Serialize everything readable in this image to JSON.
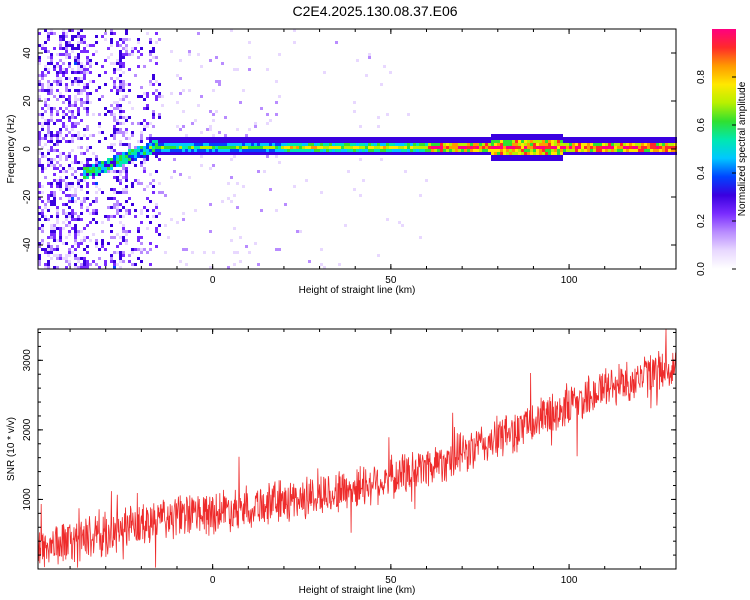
{
  "figure": {
    "title": "C2E4.2025.130.08.37.E06"
  },
  "colors": {
    "snr_line": "#ee2b2b",
    "axis": "#000000",
    "colormap": [
      "#ffffff",
      "#e8d8ff",
      "#b98cff",
      "#7a2cff",
      "#3a00e0",
      "#0044ff",
      "#00c8ff",
      "#00e8b0",
      "#30e030",
      "#b8f000",
      "#ffe800",
      "#ff9a00",
      "#ff2a2a",
      "#ff0080"
    ]
  },
  "chart_data": [
    {
      "type": "heatmap",
      "title": "",
      "xlabel": "Height of straight line (km)",
      "ylabel": "Frequency (Hz)",
      "xlim": [
        -49,
        130
      ],
      "ylim": [
        -50,
        50
      ],
      "xticks": [
        0,
        50,
        100
      ],
      "yticks": [
        -40,
        -20,
        0,
        20,
        40
      ],
      "colorbar": {
        "label": "Normalized spectral amplitude",
        "range": [
          0.0,
          1.0
        ],
        "ticks": [
          0.0,
          0.2,
          0.4,
          0.6,
          0.8
        ]
      },
      "features": [
        {
          "name": "narrowband carrier",
          "freq_hz": 1.5,
          "x_start": -18,
          "x_end": 130,
          "amplitude": 0.85
        },
        {
          "name": "broadband noise",
          "x_start": -49,
          "x_end": -15,
          "amplitude": 0.15
        }
      ]
    },
    {
      "type": "line",
      "title": "",
      "xlabel": "Height of straight line (km)",
      "ylabel": "SNR (10 * v/v)",
      "xlim": [
        -49,
        130
      ],
      "ylim": [
        0,
        3450
      ],
      "xticks": [
        0,
        50,
        100
      ],
      "yticks": [
        1000,
        2000,
        3000
      ],
      "trend": {
        "x": [
          -49,
          -30,
          -10,
          10,
          30,
          50,
          70,
          90,
          110,
          130
        ],
        "y": [
          300,
          500,
          750,
          900,
          1050,
          1300,
          1650,
          2100,
          2600,
          2900
        ]
      },
      "noise_amplitude": 350
    }
  ]
}
